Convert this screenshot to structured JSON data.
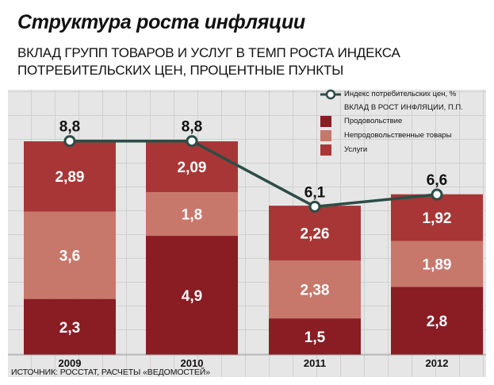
{
  "header": {
    "title": "Структура роста инфляции",
    "subtitle_line1": "ВКЛАД ГРУПП ТОВАРОВ И УСЛУГ В ТЕМП РОСТА ИНДЕКСА",
    "subtitle_line2": "ПОТРЕБИТЕЛЬСКИХ ЦЕН, ПРОЦЕНТНЫЕ ПУНКТЫ"
  },
  "source": "ИСТОЧНИК: РОССТАТ, РАСЧЕТЫ «ВЕДОМОСТЕЙ»",
  "legend": {
    "line_label": "Индекс потребительских цен, %",
    "bars_heading": "ВКЛАД В РОСТ ИНФЛЯЦИИ, П.П.",
    "food": "Продовольствие",
    "nonfood": "Непродовольственные товары",
    "services": "Услуги"
  },
  "colors": {
    "food": "#8a1c24",
    "nonfood": "#c8776b",
    "services": "#a83636",
    "line": "#2c4d46"
  },
  "chart_data": {
    "type": "bar",
    "stacked": true,
    "categories": [
      "2009",
      "2010",
      "2011",
      "2012"
    ],
    "series": [
      {
        "name": "Продовольствие",
        "values": [
          2.3,
          4.9,
          1.5,
          2.8
        ],
        "labels": [
          "2,3",
          "4,9",
          "1,5",
          "2,8"
        ]
      },
      {
        "name": "Непродовольственные товары",
        "values": [
          3.6,
          1.8,
          2.38,
          1.89
        ],
        "labels": [
          "3,6",
          "1,8",
          "2,38",
          "1,89"
        ]
      },
      {
        "name": "Услуги",
        "values": [
          2.89,
          2.09,
          2.26,
          1.92
        ],
        "labels": [
          "2,89",
          "2,09",
          "2,26",
          "1,92"
        ]
      }
    ],
    "line": {
      "name": "Индекс потребительских цен, %",
      "values": [
        8.8,
        8.8,
        6.1,
        6.6
      ],
      "labels": [
        "8,8",
        "8,8",
        "6,1",
        "6,6"
      ]
    },
    "ylim": [
      0,
      10
    ]
  }
}
